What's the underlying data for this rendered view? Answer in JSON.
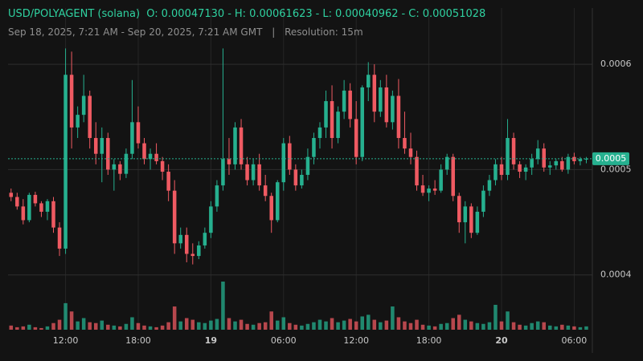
{
  "chart_data": {
    "type": "candlestick",
    "title": "USD/POLYAGENT (solana)",
    "ohlc_summary": [
      {
        "name": "O:",
        "value": {
          "value": 0.0004713,
          "label": "0.00047130"
        }
      },
      {
        "name": "H:",
        "value": {
          "value": 0.00061623,
          "label": "0.00061623"
        }
      },
      {
        "name": "L:",
        "value": {
          "value": 0.00040962,
          "label": "0.00040962"
        }
      },
      {
        "name": "C:",
        "value": {
          "value": 0.00051028,
          "label": "0.00051028"
        }
      }
    ],
    "separator": "-",
    "date_range": "Sep 18, 2025, 7:21 AM - Sep 20, 2025, 7:21 AM GMT",
    "divider": "|",
    "resolution": "Resolution: 15m",
    "up_color": "#26b08f",
    "down_color": "#ef5a62",
    "ylim": [
      0.000348,
      0.000661
    ],
    "yticks": [
      0.0004,
      0.0005,
      0.0006
    ],
    "xlim": [
      0,
      96.5
    ],
    "xticks": [
      {
        "value": 9.5,
        "label": "12:00"
      },
      {
        "value": 21.5,
        "label": "18:00"
      },
      {
        "value": 33.5,
        "label": "19",
        "bold": true
      },
      {
        "value": 45.5,
        "label": "06:00"
      },
      {
        "value": 57.5,
        "label": "12:00"
      },
      {
        "value": 69.5,
        "label": "18:00"
      },
      {
        "value": 81.5,
        "label": "20",
        "bold": true
      },
      {
        "value": 93.5,
        "label": "06:00"
      }
    ],
    "grid": true,
    "last_price": {
      "value": 0.00051028,
      "label": "0.0005"
    },
    "candles": [
      [
        0.000478,
        0.000482,
        0.00047,
        0.000474
      ],
      [
        0.000474,
        0.000478,
        0.000462,
        0.000465
      ],
      [
        0.000465,
        0.000472,
        0.000448,
        0.000452
      ],
      [
        0.000452,
        0.000478,
        0.00045,
        0.000476
      ],
      [
        0.000476,
        0.000479,
        0.000465,
        0.000468
      ],
      [
        0.000468,
        0.00047,
        0.000455,
        0.00046
      ],
      [
        0.00046,
        0.000472,
        0.000452,
        0.00047
      ],
      [
        0.00047,
        0.000474,
        0.00044,
        0.000445
      ],
      [
        0.000445,
        0.00045,
        0.000418,
        0.000425
      ],
      [
        0.000425,
        0.000615,
        0.00042,
        0.00059
      ],
      [
        0.00059,
        0.000612,
        0.00052,
        0.00054
      ],
      [
        0.00054,
        0.00056,
        0.00053,
        0.000552
      ],
      [
        0.000552,
        0.00059,
        0.000545,
        0.00057
      ],
      [
        0.00057,
        0.000575,
        0.00052,
        0.00053
      ],
      [
        0.00053,
        0.000545,
        0.000505,
        0.000515
      ],
      [
        0.000515,
        0.00054,
        0.000488,
        0.00053
      ],
      [
        0.00053,
        0.000535,
        0.000495,
        0.0005
      ],
      [
        0.0005,
        0.00051,
        0.00048,
        0.000505
      ],
      [
        0.000505,
        0.000508,
        0.00049,
        0.000496
      ],
      [
        0.000496,
        0.00052,
        0.000492,
        0.000515
      ],
      [
        0.000515,
        0.000585,
        0.00051,
        0.000545
      ],
      [
        0.000545,
        0.00056,
        0.00052,
        0.000525
      ],
      [
        0.000525,
        0.00053,
        0.000505,
        0.00051
      ],
      [
        0.00051,
        0.00052,
        0.0005,
        0.000515
      ],
      [
        0.000515,
        0.000525,
        0.000505,
        0.000508
      ],
      [
        0.000508,
        0.000512,
        0.00049,
        0.000498
      ],
      [
        0.000498,
        0.000505,
        0.00047,
        0.00048
      ],
      [
        0.00048,
        0.00049,
        0.00042,
        0.00043
      ],
      [
        0.00043,
        0.000445,
        0.000425,
        0.000438
      ],
      [
        0.000438,
        0.000445,
        0.000412,
        0.00042
      ],
      [
        0.00042,
        0.00043,
        0.00041,
        0.000418
      ],
      [
        0.000418,
        0.000432,
        0.000415,
        0.000428
      ],
      [
        0.000428,
        0.000445,
        0.000425,
        0.00044
      ],
      [
        0.00044,
        0.00047,
        0.000435,
        0.000465
      ],
      [
        0.000465,
        0.00049,
        0.00046,
        0.000485
      ],
      [
        0.000485,
        0.000615,
        0.00048,
        0.00051
      ],
      [
        0.00051,
        0.00053,
        0.000495,
        0.000505
      ],
      [
        0.000505,
        0.000545,
        0.0005,
        0.00054
      ],
      [
        0.00054,
        0.000548,
        0.0005,
        0.000505
      ],
      [
        0.000505,
        0.000512,
        0.000485,
        0.00049
      ],
      [
        0.00049,
        0.00051,
        0.000485,
        0.000505
      ],
      [
        0.000505,
        0.000515,
        0.00048,
        0.000485
      ],
      [
        0.000485,
        0.000495,
        0.00047,
        0.000475
      ],
      [
        0.000475,
        0.000478,
        0.00044,
        0.000452
      ],
      [
        0.000452,
        0.00049,
        0.00045,
        0.000488
      ],
      [
        0.000488,
        0.00053,
        0.00048,
        0.000525
      ],
      [
        0.000525,
        0.000532,
        0.000495,
        0.0005
      ],
      [
        0.0005,
        0.000505,
        0.00048,
        0.000485
      ],
      [
        0.000485,
        0.0005,
        0.000482,
        0.000495
      ],
      [
        0.000495,
        0.00052,
        0.00049,
        0.000512
      ],
      [
        0.000512,
        0.000535,
        0.000505,
        0.00053
      ],
      [
        0.00053,
        0.000545,
        0.00052,
        0.00054
      ],
      [
        0.00054,
        0.000575,
        0.00053,
        0.000565
      ],
      [
        0.000565,
        0.00058,
        0.00052,
        0.00053
      ],
      [
        0.00053,
        0.00056,
        0.000525,
        0.000555
      ],
      [
        0.000555,
        0.000585,
        0.000548,
        0.000575
      ],
      [
        0.000575,
        0.000582,
        0.00054,
        0.000548
      ],
      [
        0.000548,
        0.000565,
        0.000505,
        0.000512
      ],
      [
        0.000512,
        0.00058,
        0.000508,
        0.000578
      ],
      [
        0.000578,
        0.000602,
        0.000565,
        0.00059
      ],
      [
        0.00059,
        0.0006,
        0.000545,
        0.000555
      ],
      [
        0.000555,
        0.000585,
        0.00055,
        0.000578
      ],
      [
        0.000578,
        0.00059,
        0.00054,
        0.000545
      ],
      [
        0.000545,
        0.000575,
        0.000538,
        0.00057
      ],
      [
        0.00057,
        0.000586,
        0.00052,
        0.00053
      ],
      [
        0.00053,
        0.000555,
        0.000515,
        0.00052
      ],
      [
        0.00052,
        0.000535,
        0.000505,
        0.000512
      ],
      [
        0.000512,
        0.000518,
        0.00048,
        0.000485
      ],
      [
        0.000485,
        0.000495,
        0.000475,
        0.000478
      ],
      [
        0.000478,
        0.000485,
        0.00047,
        0.000482
      ],
      [
        0.000482,
        0.00049,
        0.000476,
        0.00048
      ],
      [
        0.00048,
        0.000505,
        0.000478,
        0.0005
      ],
      [
        0.0005,
        0.000515,
        0.000495,
        0.000512
      ],
      [
        0.000512,
        0.000515,
        0.00047,
        0.000475
      ],
      [
        0.000475,
        0.000478,
        0.00044,
        0.00045
      ],
      [
        0.00045,
        0.00047,
        0.00043,
        0.000465
      ],
      [
        0.000465,
        0.000468,
        0.000435,
        0.00044
      ],
      [
        0.00044,
        0.000465,
        0.000438,
        0.00046
      ],
      [
        0.00046,
        0.000485,
        0.000455,
        0.00048
      ],
      [
        0.00048,
        0.000495,
        0.000475,
        0.00049
      ],
      [
        0.00049,
        0.00051,
        0.000485,
        0.000505
      ],
      [
        0.000505,
        0.000512,
        0.00049,
        0.000495
      ],
      [
        0.000495,
        0.000548,
        0.00049,
        0.00053
      ],
      [
        0.00053,
        0.000535,
        0.0005,
        0.000505
      ],
      [
        0.000505,
        0.000508,
        0.000492,
        0.000498
      ],
      [
        0.000498,
        0.000505,
        0.00049,
        0.000502
      ],
      [
        0.000502,
        0.000515,
        0.000495,
        0.00051
      ],
      [
        0.00051,
        0.000528,
        0.000505,
        0.00052
      ],
      [
        0.00052,
        0.000525,
        0.000498,
        0.000502
      ],
      [
        0.000502,
        0.000508,
        0.000495,
        0.000504
      ],
      [
        0.000504,
        0.00051,
        0.0005,
        0.000508
      ],
      [
        0.000508,
        0.000512,
        0.000498,
        0.0005
      ],
      [
        0.0005,
        0.000515,
        0.000496,
        0.000512
      ],
      [
        0.000512,
        0.000516,
        0.000505,
        0.000508
      ],
      [
        0.000508,
        0.000512,
        0.000504,
        0.00051
      ],
      [
        0.00051,
        0.000512,
        0.000506,
        0.00051028
      ]
    ],
    "volume": [
      5,
      3,
      4,
      6,
      3,
      2,
      4,
      8,
      12,
      32,
      22,
      10,
      14,
      9,
      8,
      11,
      6,
      5,
      4,
      7,
      15,
      8,
      5,
      4,
      3,
      5,
      9,
      28,
      10,
      14,
      12,
      9,
      8,
      11,
      13,
      58,
      14,
      10,
      12,
      7,
      6,
      8,
      9,
      22,
      11,
      15,
      8,
      6,
      5,
      7,
      9,
      12,
      10,
      14,
      9,
      11,
      13,
      10,
      16,
      18,
      12,
      9,
      11,
      28,
      15,
      10,
      8,
      12,
      6,
      5,
      4,
      7,
      8,
      14,
      18,
      12,
      10,
      8,
      7,
      9,
      30,
      10,
      22,
      9,
      6,
      5,
      8,
      10,
      9,
      5,
      4,
      6,
      5,
      4,
      3,
      4
    ]
  }
}
